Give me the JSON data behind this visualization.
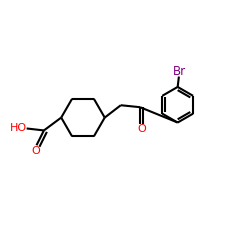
{
  "bg_color": "#ffffff",
  "line_color": "#000000",
  "o_color": "#ff0000",
  "br_color": "#800080",
  "lw": 1.5,
  "figsize": [
    2.5,
    2.5
  ],
  "dpi": 100,
  "xlim": [
    0,
    10
  ],
  "ylim": [
    0,
    10
  ]
}
